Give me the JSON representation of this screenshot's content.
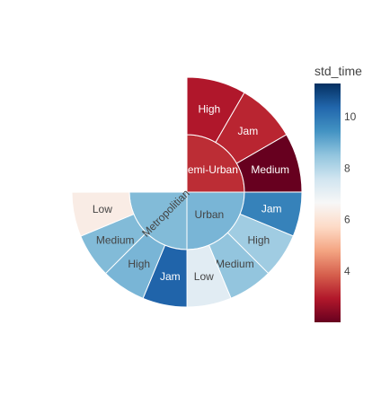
{
  "chart_data": {
    "type": "sunburst",
    "colorbar": {
      "title": "std_time",
      "range": [
        2.0,
        11.3
      ],
      "ticks": [
        4,
        6,
        8,
        10
      ],
      "colorscale": [
        "#67001f",
        "#b2182b",
        "#d6604d",
        "#f4a582",
        "#fddbc7",
        "#f7f7f7",
        "#d1e5f0",
        "#92c5de",
        "#4393c3",
        "#2166ac",
        "#053061"
      ]
    },
    "start_angle_deg": 90,
    "inner": [
      {
        "label": "Semi-Urban",
        "value": 3.2,
        "share": 0.25,
        "text_color": "#ffffff",
        "radial": false
      },
      {
        "label": "Urban",
        "value": 8.8,
        "share": 0.25,
        "text_color": "#444444",
        "radial": false
      },
      {
        "label": "Metropolitian",
        "value": 8.7,
        "share": 0.25,
        "text_color": "#444444",
        "radial": true
      }
    ],
    "outer": [
      {
        "parent": "Semi-Urban",
        "label": "High",
        "value": 2.9,
        "share": 0.0833,
        "text_color": "#ffffff"
      },
      {
        "parent": "Semi-Urban",
        "label": "Jam",
        "value": 3.1,
        "share": 0.0833,
        "text_color": "#ffffff"
      },
      {
        "parent": "Semi-Urban",
        "label": "Medium",
        "value": 2.0,
        "share": 0.0833,
        "text_color": "#ffffff"
      },
      {
        "parent": "Metropolitian",
        "label": "Jam",
        "value": 9.8,
        "share": 0.0625,
        "text_color": "#ffffff"
      },
      {
        "parent": "Metropolitian",
        "label": "High",
        "value": 8.3,
        "share": 0.0625,
        "text_color": "#444444"
      },
      {
        "parent": "Metropolitian",
        "label": "Medium",
        "value": 8.5,
        "share": 0.0625,
        "text_color": "#444444"
      },
      {
        "parent": "Metropolitian",
        "label": "Low",
        "value": 7.2,
        "share": 0.0625,
        "text_color": "#444444"
      },
      {
        "parent": "Urban",
        "label": "Jam",
        "value": 10.4,
        "share": 0.0625,
        "text_color": "#ffffff"
      },
      {
        "parent": "Urban",
        "label": "High",
        "value": 8.8,
        "share": 0.0625,
        "text_color": "#444444"
      },
      {
        "parent": "Urban",
        "label": "Medium",
        "value": 8.7,
        "share": 0.0625,
        "text_color": "#444444"
      },
      {
        "parent": "Urban",
        "label": "Low",
        "value": 6.3,
        "share": 0.0625,
        "text_color": "#444444"
      }
    ]
  }
}
